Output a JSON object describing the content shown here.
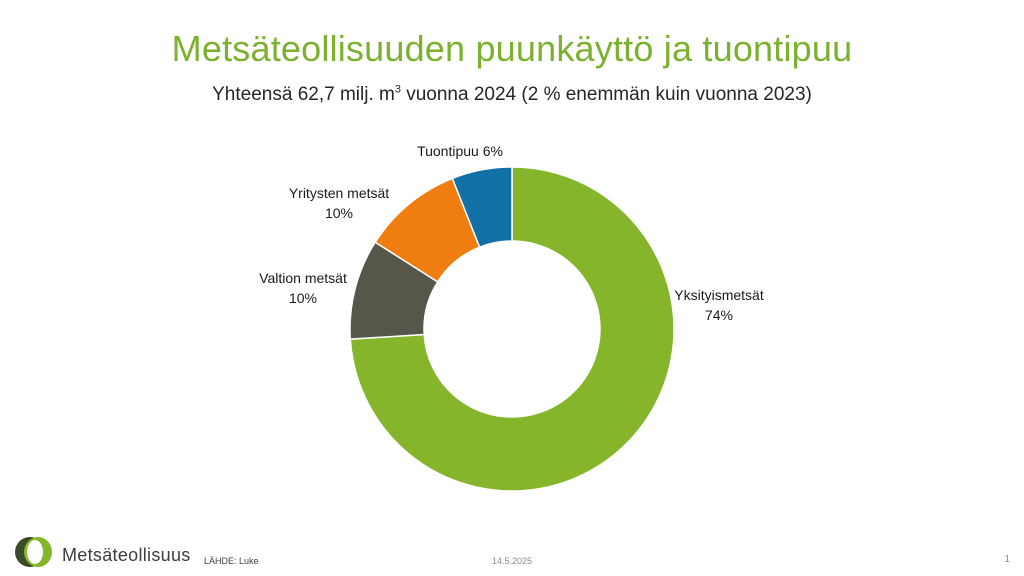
{
  "header": {
    "title": "Metsäteollisuuden puunkäyttö ja tuontipuu",
    "subtitle_pre": "Yhteensä 62,7 milj. m",
    "subtitle_sup": "3",
    "subtitle_post": " vuonna 2024 (2 % enemmän kuin vuonna 2023)"
  },
  "chart_data": {
    "type": "pie",
    "variant": "donut",
    "slices": [
      {
        "name": "Yksityismetsät",
        "value": 74,
        "label": "74%",
        "color": "#84b52a"
      },
      {
        "name": "Valtion metsät",
        "value": 10,
        "label": "10%",
        "color": "#56564a"
      },
      {
        "name": "Yritysten metsät",
        "value": 10,
        "label": "10%",
        "color": "#ef7d10"
      },
      {
        "name": "Tuontipuu",
        "value": 6,
        "label": "6%",
        "color": "#1170a6"
      }
    ],
    "legend": "none"
  },
  "footer": {
    "brand": "Metsäteollisuus",
    "source": "LÄHDE: Luke",
    "date": "14.5.2025",
    "page": "1"
  }
}
